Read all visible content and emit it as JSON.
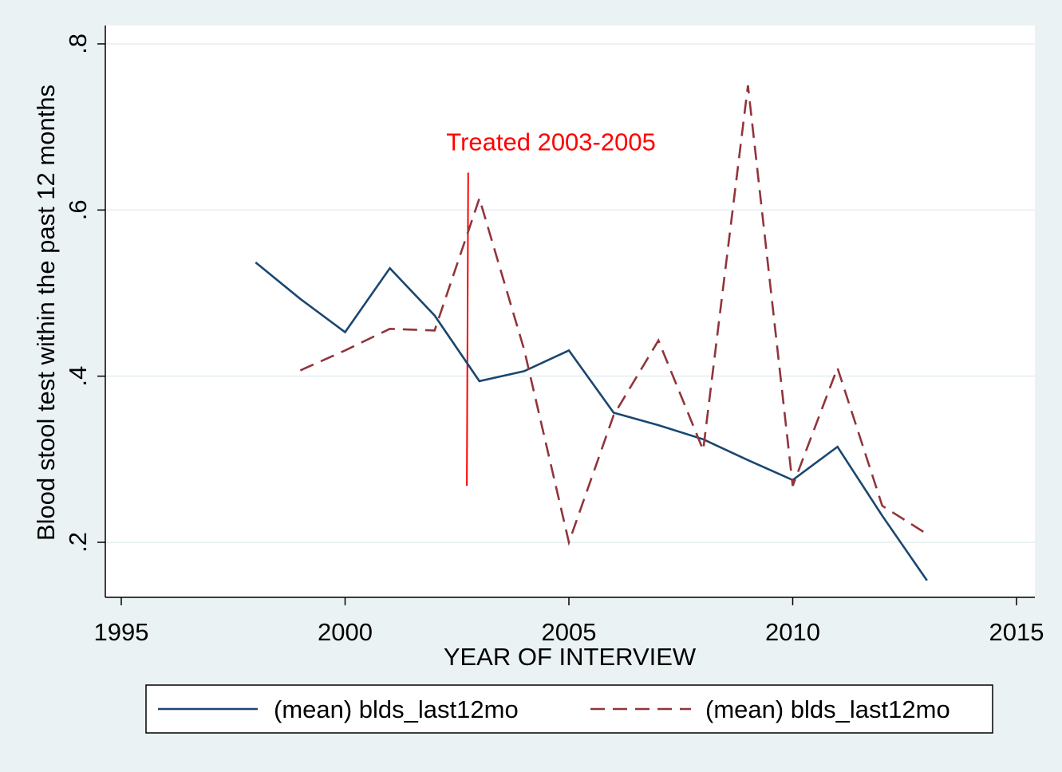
{
  "chart_data": {
    "type": "line",
    "title": "",
    "xlabel": "YEAR OF INTERVIEW",
    "ylabel": "Blood stool test within the past 12 months",
    "xlim": [
      1995,
      2015
    ],
    "ylim": [
      0.15,
      0.815
    ],
    "x_ticks": [
      1995,
      2000,
      2005,
      2010,
      2015
    ],
    "x_tick_labels": [
      "1995",
      "2000",
      "2005",
      "2010",
      "2015"
    ],
    "y_ticks": [
      0.2,
      0.4,
      0.6,
      0.8
    ],
    "y_tick_labels": [
      ".2",
      ".4",
      ".6",
      ".8"
    ],
    "grid": "horizontal",
    "legend_position": "bottom",
    "series": [
      {
        "name": "(mean) blds_last12mo",
        "style": "solid",
        "color": "#1a476f",
        "x": [
          1998,
          1999,
          2000,
          2001,
          2002,
          2003,
          2004,
          2005,
          2006,
          2007,
          2008,
          2009,
          2010,
          2011,
          2012,
          2013
        ],
        "y": [
          0.537,
          0.493,
          0.453,
          0.53,
          0.473,
          0.394,
          0.406,
          0.431,
          0.356,
          0.341,
          0.324,
          0.299,
          0.275,
          0.315,
          0.232,
          0.154
        ]
      },
      {
        "name": "(mean) blds_last12mo",
        "style": "dashed",
        "color": "#90353b",
        "x": [
          1999,
          2000,
          2001,
          2002,
          2003,
          2004,
          2005,
          2006,
          2007,
          2008,
          2009,
          2010,
          2011,
          2012,
          2013
        ],
        "y": [
          0.407,
          0.431,
          0.457,
          0.455,
          0.614,
          0.432,
          0.2,
          0.353,
          0.443,
          0.311,
          0.75,
          0.268,
          0.41,
          0.244,
          0.21
        ]
      }
    ],
    "annotations": [
      {
        "text": "Treated 2003-2005",
        "color": "#ff0000",
        "line_x": [
          2002.75,
          2002.72
        ],
        "line_y": [
          0.645,
          0.268
        ],
        "text_x": 2004.6,
        "text_y": 0.672
      }
    ]
  }
}
